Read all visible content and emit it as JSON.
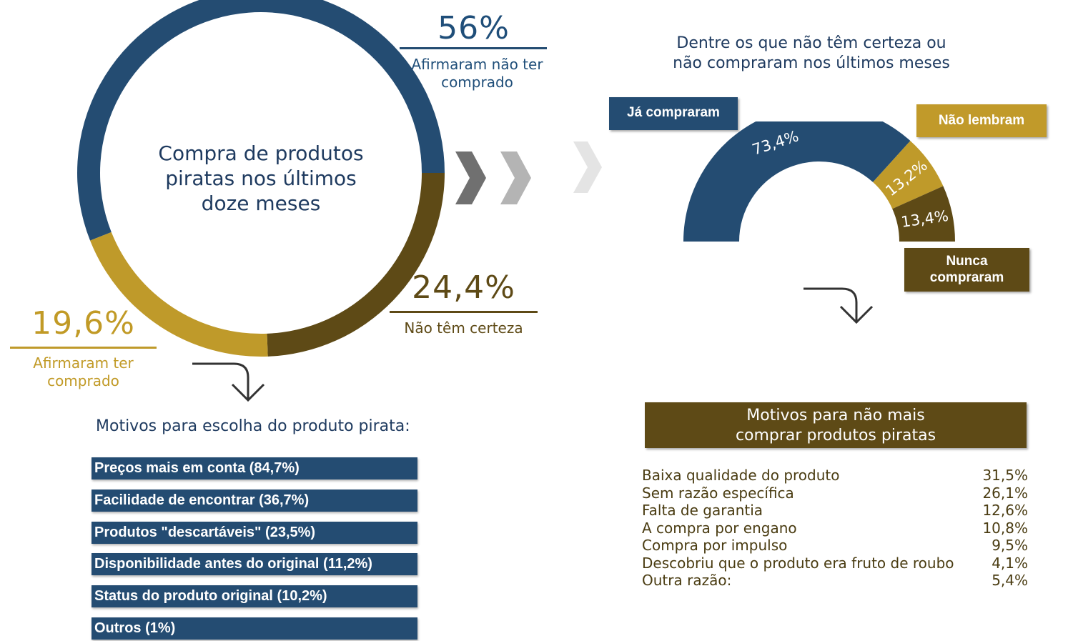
{
  "chart_data": [
    {
      "type": "pie",
      "title": "Compra de produtos piratas nos últimos doze meses",
      "slices": [
        {
          "label": "Afirmaram não ter comprado",
          "value": 56,
          "display": "56%",
          "color": "#244c72"
        },
        {
          "label": "Não têm certeza",
          "value": 24.4,
          "display": "24,4%",
          "color": "#5e4a16"
        },
        {
          "label": "Afirmaram ter comprado",
          "value": 19.6,
          "display": "19,6%",
          "color": "#bf9a2a"
        }
      ]
    },
    {
      "type": "pie",
      "title": "Dentre os que não têm certeza ou não compraram nos últimos meses",
      "slices": [
        {
          "label": "Já compraram",
          "value": 73.4,
          "display": "73,4%",
          "color": "#244c72"
        },
        {
          "label": "Não lembram",
          "value": 13.2,
          "display": "13,2%",
          "color": "#bf9a2a"
        },
        {
          "label": "Nunca compraram",
          "value": 13.4,
          "display": "13,4%",
          "color": "#5e4a16"
        }
      ]
    },
    {
      "type": "table",
      "title": "Motivos para escolha do produto pirata:",
      "rows": [
        "Preços mais em conta (84,7%)",
        "Facilidade de encontrar (36,7%)",
        "Produtos \"descartáveis\" (23,5%)",
        "Disponibilidade antes do original (11,2%)",
        "Status do produto original (10,2%)",
        "Outros (1%)"
      ]
    },
    {
      "type": "table",
      "title": "Motivos para não mais comprar produtos piratas",
      "rows": [
        {
          "label": "Baixa qualidade do produto",
          "value": "31,5%"
        },
        {
          "label": "Sem razão específica",
          "value": "26,1%"
        },
        {
          "label": "Falta de garantia",
          "value": "12,6%"
        },
        {
          "label": "A compra por engano",
          "value": "10,8%"
        },
        {
          "label": "Compra por impulso",
          "value": "9,5%"
        },
        {
          "label": "Descobriu que o produto era fruto de roubo",
          "value": "4,1%"
        },
        {
          "label": "Outra razão:",
          "value": "5,4%"
        }
      ]
    }
  ],
  "donut": {
    "title_lines": [
      "Compra de produtos",
      "piratas nos últimos",
      "doze meses"
    ],
    "labels": {
      "not_bought_pct": "56%",
      "not_bought_caption_1": "Afirmaram não ter",
      "not_bought_caption_2": "comprado",
      "unsure_pct": "24,4%",
      "unsure_caption": "Não têm certeza",
      "bought_pct": "19,6%",
      "bought_caption_1": "Afirmaram ter",
      "bought_caption_2": "comprado"
    }
  },
  "semi": {
    "title_line1": "Dentre os que não têm certeza ou",
    "title_line2": "não compraram nos últimos meses",
    "tag_bought": "Já compraram",
    "tag_dont_remember": "Não lembram",
    "tag_never_1": "Nunca",
    "tag_never_2": "compraram"
  },
  "reasons_title": "Motivos para escolha do produto pirata:",
  "notbuy_title_1": "Motivos para não mais",
  "notbuy_title_2": "comprar produtos piratas",
  "colors": {
    "navy": "#244c72",
    "gold": "#bf9a2a",
    "brown": "#5e4a16"
  }
}
